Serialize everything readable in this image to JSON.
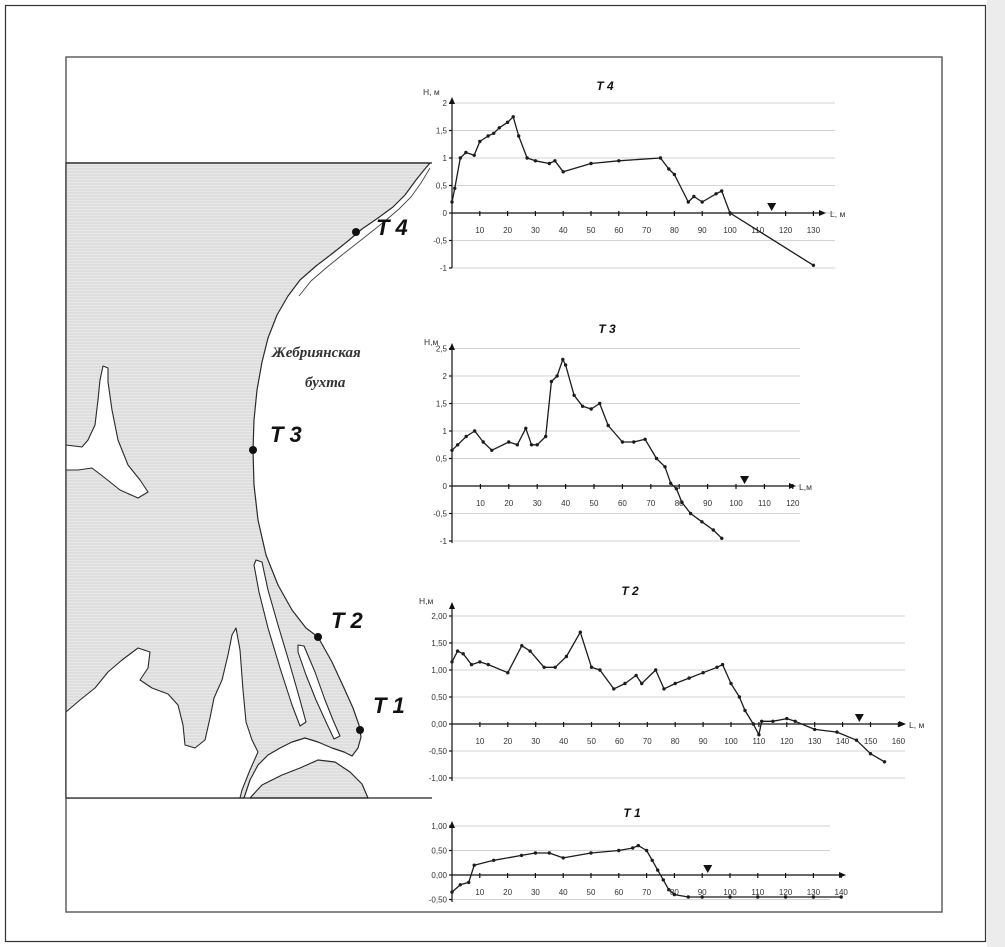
{
  "map": {
    "bay_label": [
      "Жебриянская",
      "бухта"
    ],
    "points": [
      {
        "label": "T 4"
      },
      {
        "label": "T 3"
      },
      {
        "label": "T 2"
      },
      {
        "label": "T 1"
      }
    ]
  },
  "chart_data": [
    {
      "type": "line",
      "title": "T 4",
      "xlabel": "L, м",
      "ylabel": "H, м",
      "xlim": [
        0,
        130
      ],
      "ylim": [
        -1,
        2
      ],
      "grid": true,
      "x_ticks": [
        10,
        20,
        30,
        40,
        50,
        60,
        70,
        80,
        90,
        100,
        110,
        120,
        130
      ],
      "x_tick_labels": [
        "10",
        "20",
        "30",
        "40",
        "50",
        "60",
        "70",
        "80",
        "90",
        "100",
        "110",
        "120",
        "130"
      ],
      "y_ticks": [
        2,
        1.5,
        1,
        0.5,
        0,
        -0.5,
        -1
      ],
      "y_tick_labels": [
        "2",
        "1,5",
        "1",
        "0,5",
        "0",
        "-0,5",
        "-1"
      ],
      "series": [
        {
          "x": [
            0,
            1,
            3,
            5,
            8,
            10,
            13,
            15,
            17,
            20,
            22,
            24,
            27,
            30,
            35,
            37,
            40,
            50,
            60,
            75,
            78,
            80,
            85,
            87,
            90,
            95,
            97,
            100,
            130
          ],
          "y": [
            0.2,
            0.45,
            1.0,
            1.1,
            1.05,
            1.3,
            1.4,
            1.45,
            1.55,
            1.65,
            1.75,
            1.4,
            1.0,
            0.95,
            0.9,
            0.95,
            0.75,
            0.9,
            0.95,
            1.0,
            0.8,
            0.7,
            0.2,
            0.3,
            0.2,
            0.35,
            0.4,
            0.0,
            -0.95
          ]
        }
      ],
      "marker": {
        "x": 115,
        "symbol": "triangle-down"
      }
    },
    {
      "type": "line",
      "title": "T 3",
      "xlabel": "L,м",
      "ylabel": "H,м",
      "xlim": [
        0,
        120
      ],
      "ylim": [
        -1,
        2.5
      ],
      "grid": true,
      "x_ticks": [
        10,
        20,
        30,
        40,
        50,
        60,
        70,
        80,
        90,
        100,
        110,
        120
      ],
      "x_tick_labels": [
        "10",
        "20",
        "30",
        "40",
        "50",
        "60",
        "70",
        "80",
        "90",
        "100",
        "110",
        "120"
      ],
      "y_ticks": [
        2.5,
        2,
        1.5,
        1,
        0.5,
        0,
        -0.5,
        -1
      ],
      "y_tick_labels": [
        "2,5",
        "2",
        "1,5",
        "1",
        "0,5",
        "0",
        "-0,5",
        "-1"
      ],
      "series": [
        {
          "x": [
            0,
            2,
            5,
            8,
            11,
            14,
            20,
            23,
            26,
            28,
            30,
            33,
            35,
            37,
            39,
            40,
            43,
            46,
            49,
            52,
            55,
            60,
            64,
            68,
            72,
            75,
            77,
            79,
            81,
            84,
            88,
            92,
            95
          ],
          "y": [
            0.65,
            0.75,
            0.9,
            1.0,
            0.8,
            0.65,
            0.8,
            0.75,
            1.05,
            0.75,
            0.75,
            0.9,
            1.9,
            2.0,
            2.3,
            2.2,
            1.65,
            1.45,
            1.4,
            1.5,
            1.1,
            0.8,
            0.8,
            0.85,
            0.5,
            0.35,
            0.05,
            -0.05,
            -0.3,
            -0.5,
            -0.65,
            -0.8,
            -0.95
          ]
        }
      ],
      "marker": {
        "x": 103,
        "symbol": "triangle-down"
      }
    },
    {
      "type": "line",
      "title": "T 2",
      "xlabel": "L, м",
      "ylabel": "H,м",
      "xlim": [
        0,
        160
      ],
      "ylim": [
        -1,
        2
      ],
      "grid": true,
      "x_ticks": [
        10,
        20,
        30,
        40,
        50,
        60,
        70,
        80,
        90,
        100,
        110,
        120,
        130,
        140,
        150,
        160
      ],
      "x_tick_labels": [
        "10",
        "20",
        "30",
        "40",
        "50",
        "60",
        "70",
        "80",
        "90",
        "100",
        "110",
        "120",
        "130",
        "140",
        "150",
        "160"
      ],
      "y_ticks": [
        2,
        1.5,
        1,
        0.5,
        0,
        -0.5,
        -1
      ],
      "y_tick_labels": [
        "2,00",
        "1,50",
        "1,00",
        "0,50",
        "0,00",
        "-0,50",
        "-1,00"
      ],
      "series": [
        {
          "x": [
            0,
            2,
            4,
            7,
            10,
            13,
            20,
            25,
            28,
            33,
            37,
            41,
            46,
            50,
            53,
            58,
            62,
            66,
            68,
            73,
            76,
            80,
            85,
            90,
            95,
            97,
            100,
            103,
            105,
            108,
            110,
            111,
            115,
            120,
            123,
            130,
            138,
            145,
            150,
            155
          ],
          "y": [
            1.15,
            1.35,
            1.3,
            1.1,
            1.15,
            1.1,
            0.95,
            1.45,
            1.35,
            1.05,
            1.05,
            1.25,
            1.7,
            1.05,
            1.0,
            0.65,
            0.75,
            0.9,
            0.75,
            1.0,
            0.65,
            0.75,
            0.85,
            0.95,
            1.05,
            1.1,
            0.75,
            0.5,
            0.25,
            0.0,
            -0.2,
            0.05,
            0.05,
            0.1,
            0.05,
            -0.1,
            -0.15,
            -0.3,
            -0.55,
            -0.7
          ]
        }
      ],
      "marker": {
        "x": 146,
        "symbol": "triangle-down"
      }
    },
    {
      "type": "line",
      "title": "T 1",
      "xlim": [
        0,
        140
      ],
      "ylim": [
        -0.5,
        1
      ],
      "grid": true,
      "x_ticks": [
        10,
        20,
        30,
        40,
        50,
        60,
        70,
        80,
        90,
        100,
        110,
        120,
        130,
        140
      ],
      "x_tick_labels": [
        "10",
        "20",
        "30",
        "40",
        "50",
        "60",
        "70",
        "80",
        "90",
        "100",
        "110",
        "120",
        "130",
        "140"
      ],
      "y_ticks": [
        1,
        0.5,
        0,
        -0.5
      ],
      "y_tick_labels": [
        "1,00",
        "0,50",
        "0,00",
        "-0,50"
      ],
      "series": [
        {
          "x": [
            0,
            3,
            6,
            8,
            15,
            25,
            30,
            35,
            40,
            50,
            60,
            65,
            67,
            70,
            72,
            74,
            76,
            78,
            80,
            85,
            90,
            100,
            110,
            120,
            130,
            140
          ],
          "y": [
            -0.35,
            -0.2,
            -0.15,
            0.2,
            0.3,
            0.4,
            0.45,
            0.45,
            0.35,
            0.45,
            0.5,
            0.55,
            0.6,
            0.5,
            0.3,
            0.1,
            -0.1,
            -0.3,
            -0.4,
            -0.45,
            -0.45,
            -0.45,
            -0.45,
            -0.45,
            -0.45,
            -0.45
          ]
        }
      ],
      "marker": {
        "x": 92,
        "symbol": "triangle-down"
      }
    }
  ]
}
